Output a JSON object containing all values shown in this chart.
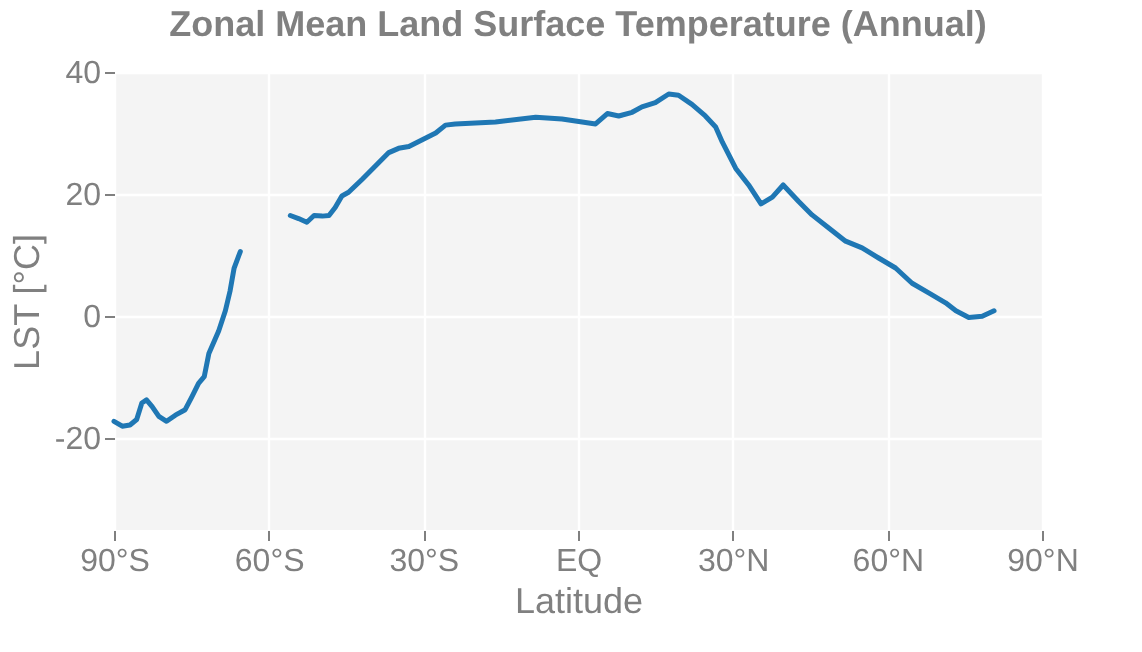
{
  "chart_data": {
    "type": "line",
    "title": "Zonal Mean Land Surface Temperature (Annual)",
    "xlabel": "Latitude",
    "ylabel": "LST [°C]",
    "x": [
      -90,
      -88.4,
      -86.9,
      -85.6,
      -84.6,
      -83.7,
      -82.6,
      -81.3,
      -79.8,
      -78.1,
      -76.2,
      -74.9,
      -73.6,
      -72.5,
      -71.6,
      -69.7,
      -68.4,
      -67.5,
      -66.7,
      -65.5,
      -60,
      -55.8,
      -54.2,
      -52.6,
      -51.2,
      -49.6,
      -48.3,
      -47.1,
      -45.8,
      -44.5,
      -41.9,
      -39.3,
      -36.7,
      -34.8,
      -32.8,
      -30.2,
      -27.6,
      -25.7,
      -23.8,
      -16,
      -8.2,
      -3.1,
      3.4,
      5.7,
      7.9,
      10.5,
      12.4,
      15,
      17.6,
      19.5,
      22.1,
      24.7,
      26.7,
      28,
      30.6,
      33.1,
      35.5,
      37.7,
      39.8,
      42.8,
      45.4,
      48.7,
      51.9,
      55.1,
      58.4,
      61.6,
      64.8,
      68.1,
      71.3,
      73.3,
      75.8,
      78.4,
      80.7
    ],
    "series": [
      {
        "color": "#1f77b4",
        "values": [
          -17.2,
          -18,
          -17.8,
          -16.9,
          -14.2,
          -13.7,
          -14.8,
          -16.4,
          -17.2,
          -16.2,
          -15.3,
          -13.2,
          -11,
          -9.9,
          -6.1,
          -2.4,
          0.9,
          4.1,
          7.9,
          10.6,
          null,
          16.5,
          16,
          15.4,
          16.5,
          16.4,
          16.5,
          17.8,
          19.7,
          20.3,
          22.4,
          24.6,
          26.8,
          27.5,
          27.8,
          28.9,
          30,
          31.3,
          31.5,
          31.8,
          32.6,
          32.3,
          31.5,
          33.2,
          32.8,
          33.4,
          34.3,
          35,
          36.4,
          36.2,
          34.7,
          32.8,
          31,
          28.5,
          24.2,
          21.5,
          18.4,
          19.5,
          21.5,
          18.8,
          16.6,
          14.4,
          12.3,
          11.2,
          9.5,
          7.9,
          5.4,
          3.8,
          2.2,
          0.9,
          -0.2,
          0,
          0.9
        ]
      }
    ],
    "xlim": [
      -90,
      90
    ],
    "xticks": [
      {
        "value": -90,
        "label": "90°S"
      },
      {
        "value": -60,
        "label": "60°S"
      },
      {
        "value": -30,
        "label": "30°S"
      },
      {
        "value": 0,
        "label": "EQ"
      },
      {
        "value": 30,
        "label": "30°N"
      },
      {
        "value": 60,
        "label": "60°N"
      },
      {
        "value": 90,
        "label": "90°N"
      }
    ],
    "ylim": [
      -35,
      40
    ],
    "yticks": [
      -20,
      0,
      20,
      40
    ],
    "grid": true
  }
}
